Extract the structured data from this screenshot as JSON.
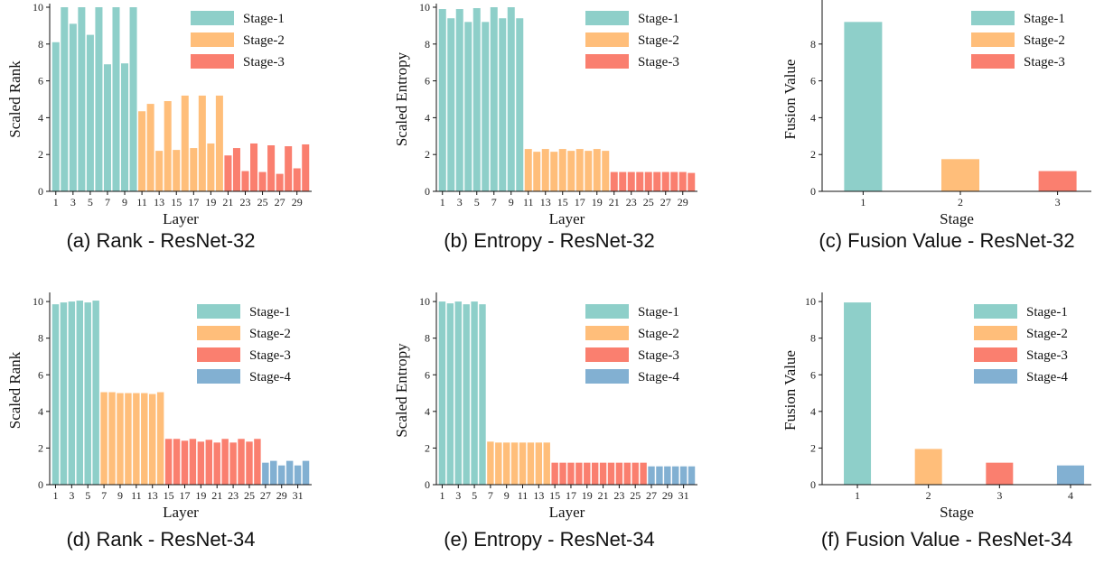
{
  "colors": {
    "Stage-1": "#8ecfc9",
    "Stage-2": "#ffbe7a",
    "Stage-3": "#fa7f6f",
    "Stage-4": "#82b0d2"
  },
  "chart_data": [
    {
      "id": "a",
      "type": "bar",
      "caption": "(a) Rank - ResNet-32",
      "xlabel": "Layer",
      "ylabel": "Scaled Rank",
      "ylim": [
        0,
        10
      ],
      "yticks": [
        0,
        2,
        4,
        6,
        8,
        10
      ],
      "xtick_labels": [
        "1",
        "3",
        "5",
        "7",
        "9",
        "11",
        "13",
        "15",
        "17",
        "19",
        "21",
        "23",
        "25",
        "27",
        "29"
      ],
      "legend": [
        "Stage-1",
        "Stage-2",
        "Stage-3"
      ],
      "legend_position": "top-right",
      "series": [
        {
          "name": "Stage-1",
          "x": [
            1,
            2,
            3,
            4,
            5,
            6,
            7,
            8,
            9,
            10
          ],
          "values": [
            8.1,
            10.0,
            9.1,
            10.0,
            8.5,
            10.0,
            6.9,
            10.0,
            6.95,
            10.0
          ]
        },
        {
          "name": "Stage-2",
          "x": [
            11,
            12,
            13,
            14,
            15,
            16,
            17,
            18,
            19,
            20
          ],
          "values": [
            4.35,
            4.75,
            2.2,
            4.9,
            2.25,
            5.2,
            2.35,
            5.2,
            2.6,
            5.2
          ]
        },
        {
          "name": "Stage-3",
          "x": [
            21,
            22,
            23,
            24,
            25,
            26,
            27,
            28,
            29,
            30
          ],
          "values": [
            1.95,
            2.35,
            1.1,
            2.6,
            1.05,
            2.5,
            0.95,
            2.45,
            1.25,
            2.55
          ]
        }
      ]
    },
    {
      "id": "b",
      "type": "bar",
      "caption": "(b) Entropy - ResNet-32",
      "xlabel": "Layer",
      "ylabel": "Scaled Entropy",
      "ylim": [
        0,
        10
      ],
      "yticks": [
        0,
        2,
        4,
        6,
        8,
        10
      ],
      "xtick_labels": [
        "1",
        "3",
        "5",
        "7",
        "9",
        "11",
        "13",
        "15",
        "17",
        "19",
        "21",
        "23",
        "25",
        "27",
        "29"
      ],
      "legend": [
        "Stage-1",
        "Stage-2",
        "Stage-3"
      ],
      "legend_position": "top-right",
      "series": [
        {
          "name": "Stage-1",
          "x": [
            1,
            2,
            3,
            4,
            5,
            6,
            7,
            8,
            9,
            10
          ],
          "values": [
            9.9,
            9.4,
            9.9,
            9.2,
            9.95,
            9.2,
            10.0,
            9.4,
            10.0,
            9.4
          ]
        },
        {
          "name": "Stage-2",
          "x": [
            11,
            12,
            13,
            14,
            15,
            16,
            17,
            18,
            19,
            20
          ],
          "values": [
            2.3,
            2.15,
            2.3,
            2.15,
            2.3,
            2.2,
            2.3,
            2.2,
            2.3,
            2.2
          ]
        },
        {
          "name": "Stage-3",
          "x": [
            21,
            22,
            23,
            24,
            25,
            26,
            27,
            28,
            29,
            30
          ],
          "values": [
            1.05,
            1.05,
            1.05,
            1.05,
            1.05,
            1.05,
            1.05,
            1.05,
            1.05,
            1.0
          ]
        }
      ]
    },
    {
      "id": "c",
      "type": "bar",
      "caption": "(c) Fusion Value - ResNet-32",
      "xlabel": "Stage",
      "ylabel": "Fusion Value",
      "ylim": [
        0,
        10
      ],
      "yticks": [
        0,
        2,
        4,
        6,
        8
      ],
      "xtick_labels": [
        "1",
        "2",
        "3"
      ],
      "legend": [
        "Stage-1",
        "Stage-2",
        "Stage-3"
      ],
      "legend_position": "top-right",
      "series": [
        {
          "name": "Stage-1",
          "x": [
            1
          ],
          "values": [
            9.2
          ]
        },
        {
          "name": "Stage-2",
          "x": [
            2
          ],
          "values": [
            1.75
          ]
        },
        {
          "name": "Stage-3",
          "x": [
            3
          ],
          "values": [
            1.1
          ]
        }
      ]
    },
    {
      "id": "d",
      "type": "bar",
      "caption": "(d) Rank - ResNet-34",
      "xlabel": "Layer",
      "ylabel": "Scaled Rank",
      "ylim": [
        0,
        10.3
      ],
      "yticks": [
        0,
        2,
        4,
        6,
        8,
        10
      ],
      "xtick_labels": [
        "1",
        "3",
        "5",
        "7",
        "9",
        "11",
        "13",
        "15",
        "17",
        "19",
        "21",
        "23",
        "25",
        "27",
        "29",
        "31"
      ],
      "legend": [
        "Stage-1",
        "Stage-2",
        "Stage-3",
        "Stage-4"
      ],
      "legend_position": "top-right",
      "series": [
        {
          "name": "Stage-1",
          "x": [
            1,
            2,
            3,
            4,
            5,
            6
          ],
          "values": [
            9.85,
            9.95,
            10.0,
            10.05,
            9.95,
            10.05
          ]
        },
        {
          "name": "Stage-2",
          "x": [
            7,
            8,
            9,
            10,
            11,
            12,
            13,
            14
          ],
          "values": [
            5.05,
            5.05,
            5.0,
            5.0,
            5.0,
            5.0,
            4.95,
            5.05
          ]
        },
        {
          "name": "Stage-3",
          "x": [
            15,
            16,
            17,
            18,
            19,
            20,
            21,
            22,
            23,
            24,
            25,
            26
          ],
          "values": [
            2.5,
            2.5,
            2.4,
            2.5,
            2.35,
            2.45,
            2.3,
            2.5,
            2.3,
            2.5,
            2.35,
            2.5
          ]
        },
        {
          "name": "Stage-4",
          "x": [
            27,
            28,
            29,
            30,
            31,
            32
          ],
          "values": [
            1.2,
            1.3,
            1.05,
            1.3,
            1.05,
            1.3
          ]
        }
      ]
    },
    {
      "id": "e",
      "type": "bar",
      "caption": "(e) Entropy - ResNet-34",
      "xlabel": "Layer",
      "ylabel": "Scaled Entropy",
      "ylim": [
        0,
        10.3
      ],
      "yticks": [
        0,
        2,
        4,
        6,
        8,
        10
      ],
      "xtick_labels": [
        "1",
        "3",
        "5",
        "7",
        "9",
        "11",
        "13",
        "15",
        "17",
        "19",
        "21",
        "23",
        "25",
        "27",
        "29",
        "31"
      ],
      "legend": [
        "Stage-1",
        "Stage-2",
        "Stage-3",
        "Stage-4"
      ],
      "legend_position": "top-right",
      "series": [
        {
          "name": "Stage-1",
          "x": [
            1,
            2,
            3,
            4,
            5,
            6
          ],
          "values": [
            10.0,
            9.9,
            10.0,
            9.85,
            10.0,
            9.85
          ]
        },
        {
          "name": "Stage-2",
          "x": [
            7,
            8,
            9,
            10,
            11,
            12,
            13,
            14
          ],
          "values": [
            2.35,
            2.3,
            2.3,
            2.3,
            2.3,
            2.3,
            2.3,
            2.3
          ]
        },
        {
          "name": "Stage-3",
          "x": [
            15,
            16,
            17,
            18,
            19,
            20,
            21,
            22,
            23,
            24,
            25,
            26
          ],
          "values": [
            1.2,
            1.2,
            1.2,
            1.2,
            1.2,
            1.2,
            1.2,
            1.2,
            1.2,
            1.2,
            1.2,
            1.2
          ]
        },
        {
          "name": "Stage-4",
          "x": [
            27,
            28,
            29,
            30,
            31,
            32
          ],
          "values": [
            1.0,
            1.0,
            1.0,
            1.0,
            1.0,
            1.0
          ]
        }
      ]
    },
    {
      "id": "f",
      "type": "bar",
      "caption": "(f) Fusion Value - ResNet-34",
      "xlabel": "Stage",
      "ylabel": "Fusion Value",
      "ylim": [
        0,
        10.3
      ],
      "yticks": [
        0,
        2,
        4,
        6,
        8,
        10
      ],
      "xtick_labels": [
        "1",
        "2",
        "3",
        "4"
      ],
      "legend": [
        "Stage-1",
        "Stage-2",
        "Stage-3",
        "Stage-4"
      ],
      "legend_position": "top-right",
      "series": [
        {
          "name": "Stage-1",
          "x": [
            1
          ],
          "values": [
            9.95
          ]
        },
        {
          "name": "Stage-2",
          "x": [
            2
          ],
          "values": [
            1.95
          ]
        },
        {
          "name": "Stage-3",
          "x": [
            3
          ],
          "values": [
            1.2
          ]
        },
        {
          "name": "Stage-4",
          "x": [
            4
          ],
          "values": [
            1.05
          ]
        }
      ]
    }
  ]
}
